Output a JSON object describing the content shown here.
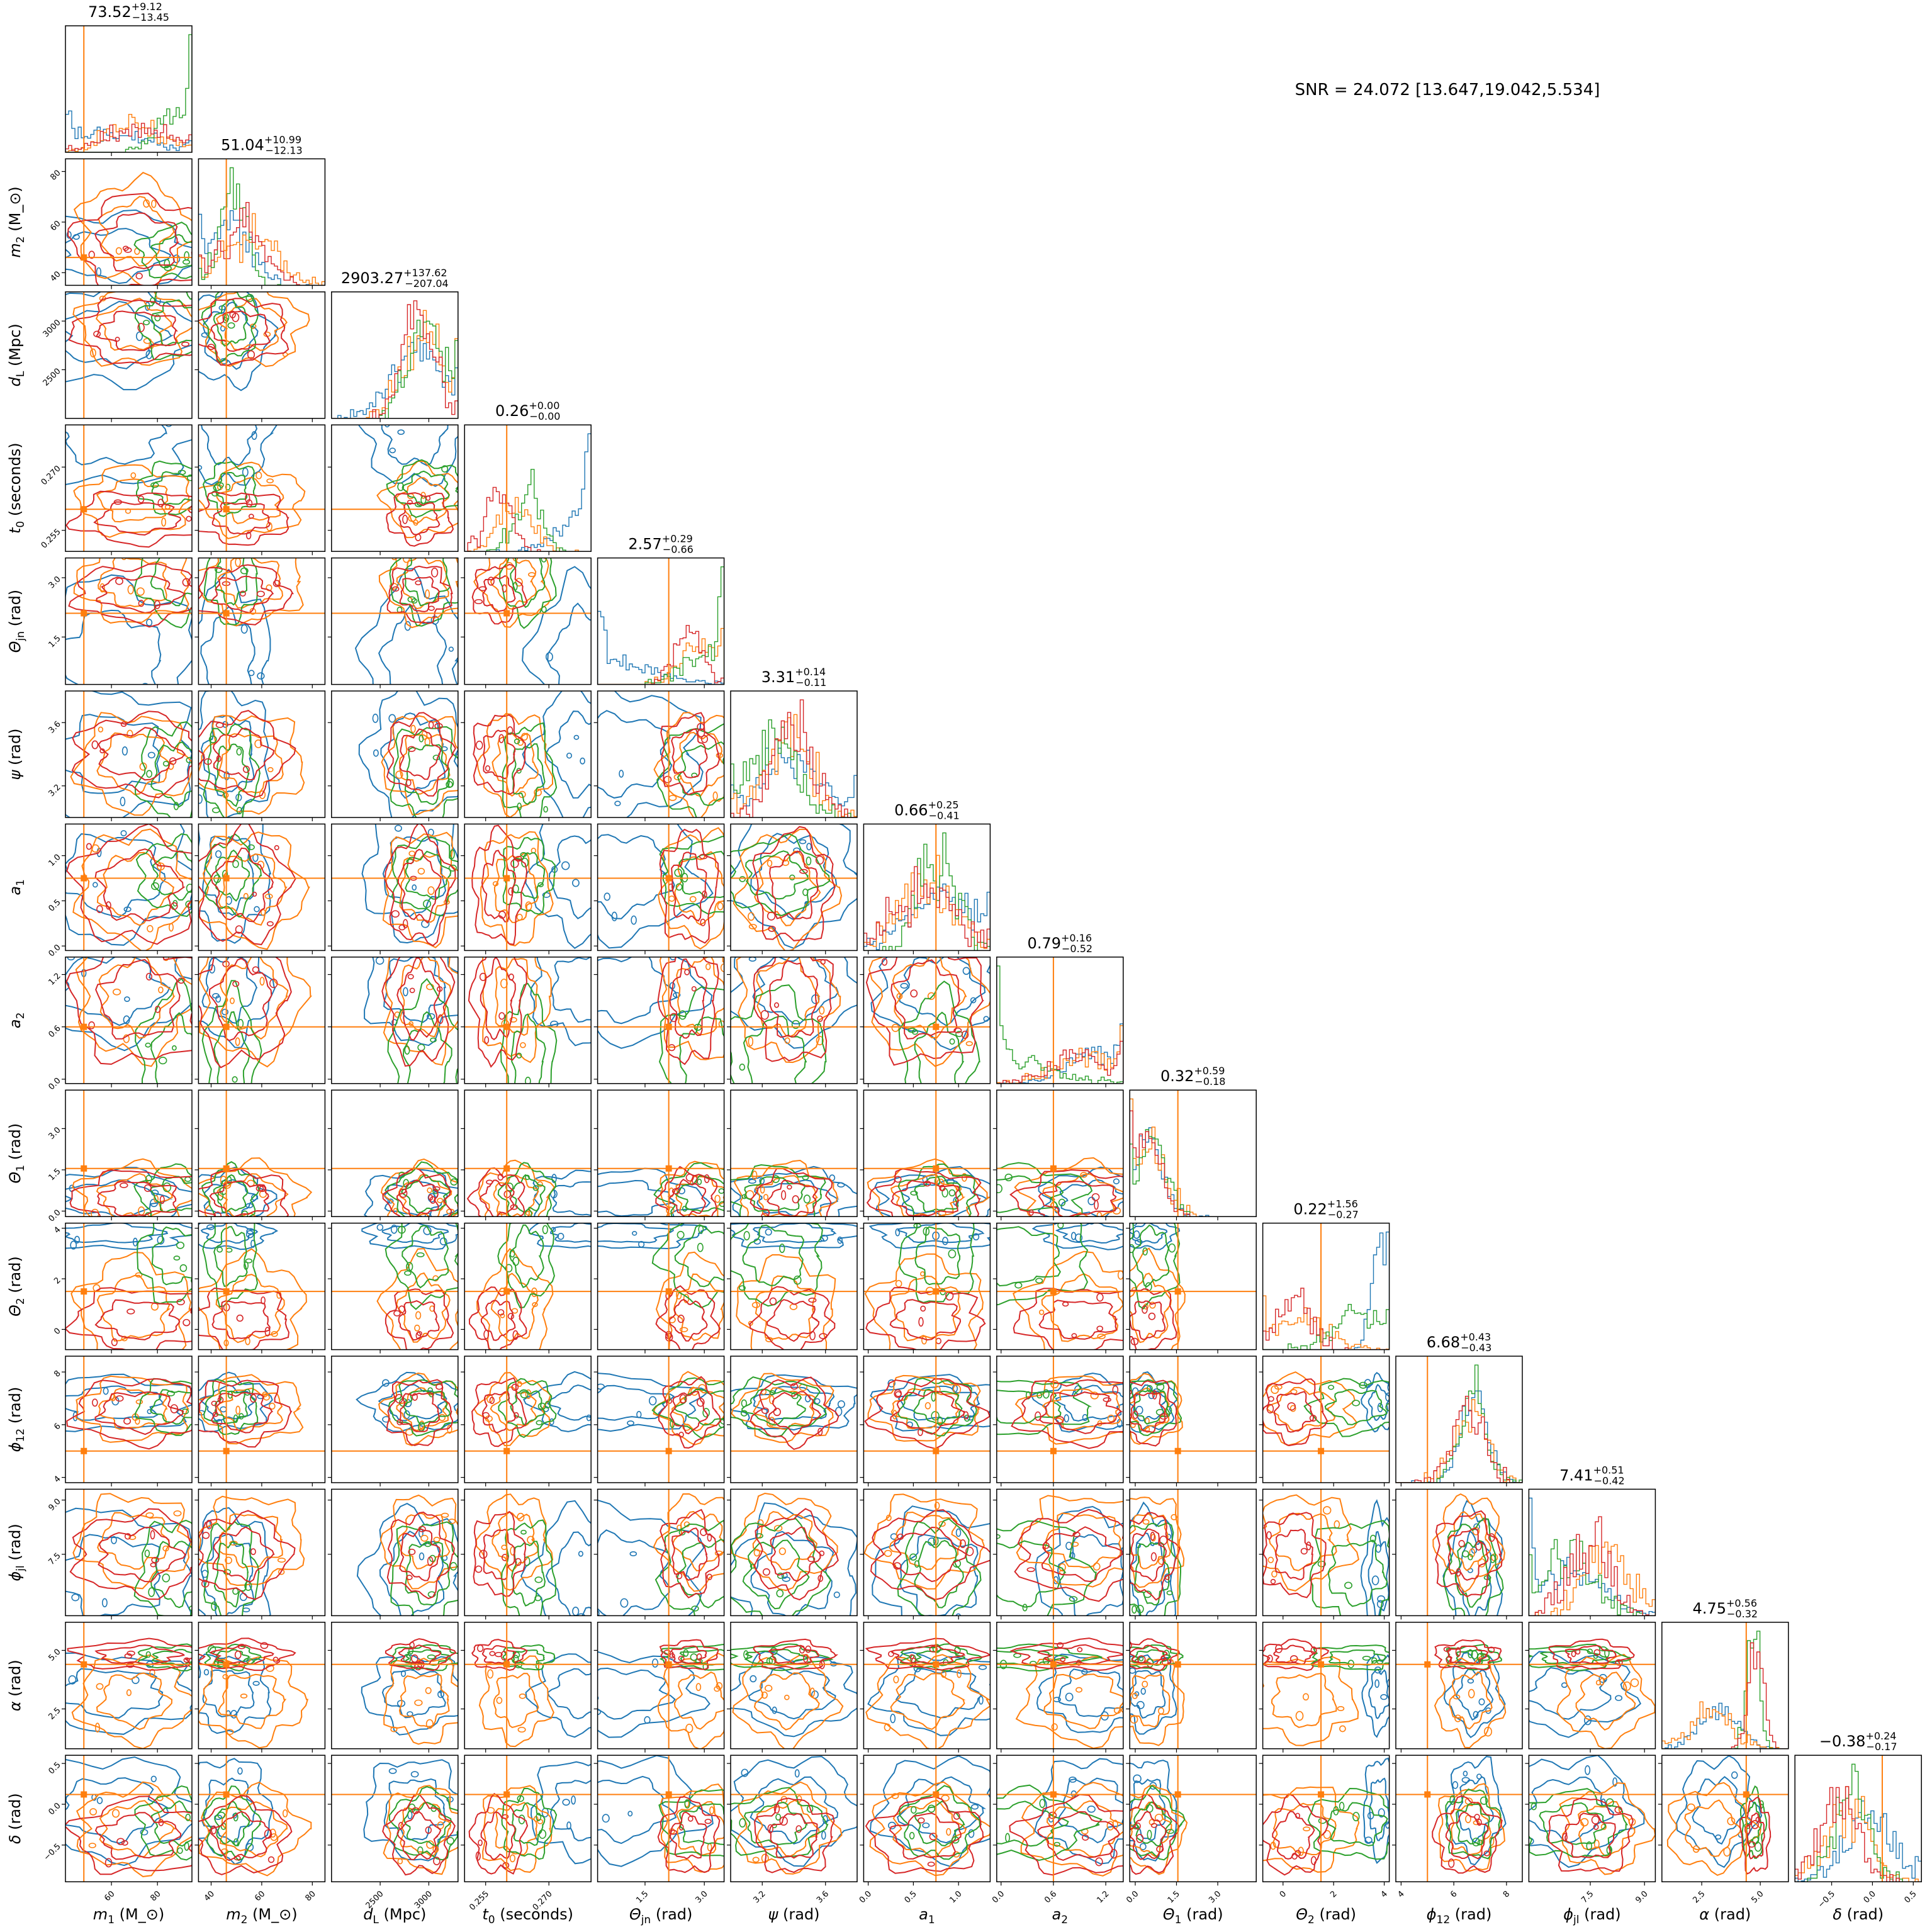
{
  "figure": {
    "annotation": "SNR = 24.072 [13.647,19.042,5.534]",
    "series_colors": [
      "#1f77b4",
      "#ff7f0e",
      "#2ca02c",
      "#d62728"
    ],
    "truth_color": "#ff7f0e"
  },
  "chart_data": {
    "type": "corner",
    "grid": false,
    "parameters": [
      {
        "key": "m1",
        "label": "m_1 (M_⊙)",
        "axis": "x-and-y",
        "title_value": "73.52",
        "title_plus": "+9.12",
        "title_minus": "−13.45",
        "range": [
          40,
          95
        ],
        "ticks": [
          60,
          80
        ],
        "tick_labels": [
          "60",
          "80"
        ],
        "truth": 48
      },
      {
        "key": "m2",
        "label": "m_2 (M_⊙)",
        "title_value": "51.04",
        "title_plus": "+10.99",
        "title_minus": "−12.13",
        "range": [
          35,
          85
        ],
        "ticks": [
          40,
          60,
          80
        ],
        "tick_labels": [
          "40",
          "60",
          "80"
        ],
        "truth": 46
      },
      {
        "key": "dL",
        "label": "d_L (Mpc)",
        "title_value": "2903.27",
        "title_plus": "+137.62",
        "title_minus": "−207.04",
        "range": [
          2000,
          3300
        ],
        "ticks": [
          2500,
          3000
        ],
        "tick_labels": [
          "2500",
          "3000"
        ],
        "truth": null
      },
      {
        "key": "t0",
        "label": "t_0 (seconds)",
        "title_value": "0.26",
        "title_plus": "+0.00",
        "title_minus": "−0.00",
        "range": [
          0.25,
          0.28
        ],
        "ticks": [
          0.255,
          0.27
        ],
        "tick_labels": [
          "0.255",
          "0.270"
        ],
        "truth": 0.26
      },
      {
        "key": "thetajn",
        "label": "Θ_jn (rad)",
        "title_value": "2.57",
        "title_plus": "+0.29",
        "title_minus": "−0.66",
        "range": [
          0.3,
          3.5
        ],
        "ticks": [
          1.5,
          3.0
        ],
        "tick_labels": [
          "1.5",
          "3.0"
        ],
        "truth": 2.1
      },
      {
        "key": "psi",
        "label": "ψ (rad)",
        "title_value": "3.31",
        "title_plus": "+0.14",
        "title_minus": "−0.11",
        "range": [
          3.0,
          3.8
        ],
        "ticks": [
          3.2,
          3.6
        ],
        "tick_labels": [
          "3.2",
          "3.6"
        ],
        "truth": null
      },
      {
        "key": "a1",
        "label": "a_1",
        "title_value": "0.66",
        "title_plus": "+0.25",
        "title_minus": "−0.41",
        "range": [
          -0.05,
          1.35
        ],
        "ticks": [
          0.0,
          0.5,
          1.0
        ],
        "tick_labels": [
          "0.0",
          "0.5",
          "1.0"
        ],
        "truth": 0.75
      },
      {
        "key": "a2",
        "label": "a_2",
        "title_value": "0.79",
        "title_plus": "+0.16",
        "title_minus": "−0.52",
        "range": [
          -0.05,
          1.4
        ],
        "ticks": [
          0.0,
          0.6,
          1.2
        ],
        "tick_labels": [
          "0.0",
          "0.6",
          "1.2"
        ],
        "truth": 0.6
      },
      {
        "key": "theta1",
        "label": "Θ_1 (rad)",
        "title_value": "0.32",
        "title_plus": "+0.59",
        "title_minus": "−0.18",
        "range": [
          -0.2,
          4.4
        ],
        "ticks": [
          0.0,
          1.5,
          3.0
        ],
        "tick_labels": [
          "0.0",
          "1.5",
          "3.0"
        ],
        "truth": 1.55
      },
      {
        "key": "theta2",
        "label": "Θ_2 (rad)",
        "title_value": "0.22",
        "title_plus": "+1.56",
        "title_minus": "−0.27",
        "range": [
          -0.8,
          4.2
        ],
        "ticks": [
          0,
          2,
          4
        ],
        "tick_labels": [
          "0",
          "2",
          "4"
        ],
        "truth": 1.5
      },
      {
        "key": "phi12",
        "label": "ϕ_12 (rad)",
        "title_value": "6.68",
        "title_plus": "+0.43",
        "title_minus": "−0.43",
        "range": [
          3.8,
          8.6
        ],
        "ticks": [
          4,
          6,
          8
        ],
        "tick_labels": [
          "4",
          "6",
          "8"
        ],
        "truth": 5.0
      },
      {
        "key": "phijl",
        "label": "ϕ_jl (rad)",
        "title_value": "7.41",
        "title_plus": "+0.51",
        "title_minus": "−0.42",
        "range": [
          5.8,
          9.3
        ],
        "ticks": [
          7.5,
          9.0
        ],
        "tick_labels": [
          "7.5",
          "9.0"
        ],
        "truth": null
      },
      {
        "key": "alpha",
        "label": "α (rad)",
        "title_value": "4.75",
        "title_plus": "+0.56",
        "title_minus": "−0.32",
        "range": [
          0.8,
          6.2
        ],
        "ticks": [
          2.5,
          5.0
        ],
        "tick_labels": [
          "2.5",
          "5.0"
        ],
        "truth": 4.4
      },
      {
        "key": "delta",
        "label": "δ (rad)",
        "title_value": "−0.38",
        "title_plus": "+0.24",
        "title_minus": "−0.17",
        "range": [
          -0.95,
          0.6
        ],
        "ticks": [
          -0.5,
          0.0,
          0.5
        ],
        "tick_labels": [
          "−0.5",
          "0.0",
          "0.5"
        ],
        "truth": 0.12
      }
    ],
    "series": [
      {
        "color": "#1f77b4",
        "centers": [
          60,
          47,
          2850,
          0.278,
          0.9,
          3.4,
          0.8,
          1.05,
          0.45,
          3.8,
          6.8,
          6.9,
          3.2,
          -0.05
        ],
        "spreads": [
          18,
          8,
          250,
          0.006,
          1.0,
          0.2,
          0.35,
          0.3,
          0.5,
          0.3,
          0.5,
          0.9,
          0.8,
          0.3
        ]
      },
      {
        "color": "#ff7f0e",
        "centers": [
          70,
          56,
          2950,
          0.262,
          2.9,
          3.35,
          0.65,
          0.95,
          0.5,
          0.8,
          6.6,
          7.9,
          2.9,
          -0.3
        ],
        "spreads": [
          12,
          10,
          200,
          0.004,
          0.5,
          0.15,
          0.3,
          0.35,
          0.6,
          1.0,
          0.6,
          0.6,
          0.9,
          0.25
        ]
      },
      {
        "color": "#2ca02c",
        "centers": [
          88,
          48,
          2980,
          0.265,
          3.1,
          3.28,
          0.78,
          0.2,
          0.6,
          2.9,
          6.7,
          7.0,
          4.7,
          -0.25
        ],
        "spreads": [
          8,
          5,
          180,
          0.003,
          0.6,
          0.15,
          0.2,
          0.4,
          0.5,
          0.9,
          0.5,
          0.7,
          0.25,
          0.2
        ]
      },
      {
        "color": "#d62728",
        "centers": [
          72,
          52,
          2900,
          0.258,
          2.6,
          3.4,
          0.65,
          0.9,
          0.45,
          0.4,
          6.5,
          7.5,
          4.8,
          -0.4
        ],
        "spreads": [
          14,
          9,
          160,
          0.003,
          0.35,
          0.12,
          0.3,
          0.35,
          0.5,
          0.6,
          0.6,
          0.55,
          0.3,
          0.22
        ]
      }
    ]
  }
}
